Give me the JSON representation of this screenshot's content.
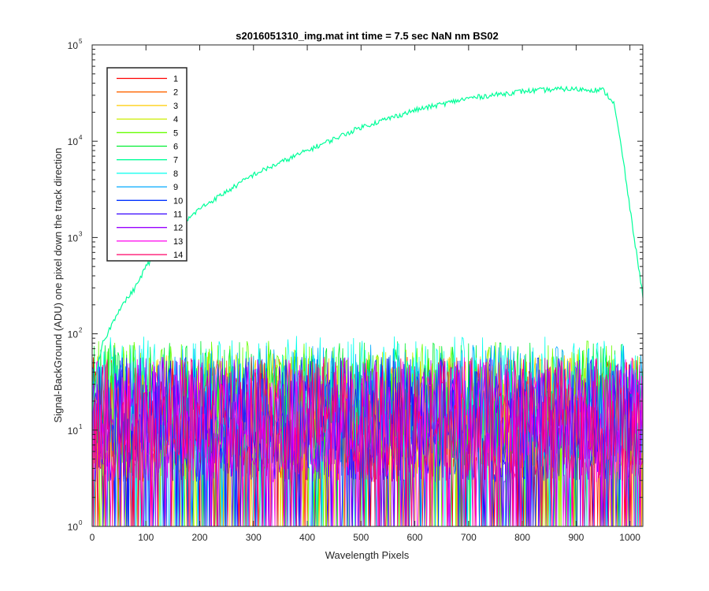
{
  "chart_data": {
    "type": "line",
    "title": "s2016051310_img.mat int time = 7.5 sec  NaN nm BS02",
    "xlabel": "Wavelength Pixels",
    "ylabel": "Signal-BackGround (ADU) one pixel down the track direction",
    "xlim": [
      0,
      1024
    ],
    "ylim": [
      1,
      100000
    ],
    "yscale": "log",
    "grid": false,
    "legend_position": "top-left",
    "x_ticks": [
      "0",
      "100",
      "200",
      "300",
      "400",
      "500",
      "600",
      "700",
      "800",
      "900",
      "1000"
    ],
    "y_ticks": [
      {
        "base": "10",
        "exp": "0"
      },
      {
        "base": "10",
        "exp": "1"
      },
      {
        "base": "10",
        "exp": "2"
      },
      {
        "base": "10",
        "exp": "3"
      },
      {
        "base": "10",
        "exp": "4"
      },
      {
        "base": "10",
        "exp": "5"
      }
    ],
    "series": [
      {
        "name": "1",
        "color": "#ff0000",
        "profile": "noise",
        "level": 15
      },
      {
        "name": "2",
        "color": "#ff6600",
        "profile": "noise",
        "level": 15
      },
      {
        "name": "3",
        "color": "#ffcc00",
        "profile": "noise",
        "level": 16
      },
      {
        "name": "4",
        "color": "#ccee00",
        "profile": "noise",
        "level": 18
      },
      {
        "name": "5",
        "color": "#66ff00",
        "profile": "noise",
        "level": 22
      },
      {
        "name": "6",
        "color": "#00ee33",
        "profile": "noise",
        "level": 22
      },
      {
        "name": "7",
        "color": "#00ff99",
        "profile": "spectrum",
        "points": [
          [
            0,
            15
          ],
          [
            10,
            45
          ],
          [
            20,
            80
          ],
          [
            50,
            180
          ],
          [
            80,
            300
          ],
          [
            100,
            500
          ],
          [
            150,
            1100
          ],
          [
            200,
            2000
          ],
          [
            250,
            3000
          ],
          [
            300,
            4500
          ],
          [
            400,
            8000
          ],
          [
            500,
            14000
          ],
          [
            600,
            21000
          ],
          [
            700,
            28000
          ],
          [
            800,
            33000
          ],
          [
            880,
            35000
          ],
          [
            950,
            34000
          ],
          [
            970,
            25000
          ],
          [
            985,
            8000
          ],
          [
            1000,
            2000
          ],
          [
            1024,
            250
          ]
        ]
      },
      {
        "name": "8",
        "color": "#00ffee",
        "profile": "noise",
        "level": 25
      },
      {
        "name": "9",
        "color": "#00aaff",
        "profile": "noise",
        "level": 20
      },
      {
        "name": "10",
        "color": "#0033ff",
        "profile": "noise",
        "level": 15
      },
      {
        "name": "11",
        "color": "#3300ff",
        "profile": "noise",
        "level": 15
      },
      {
        "name": "12",
        "color": "#9900ff",
        "profile": "noise",
        "level": 15
      },
      {
        "name": "13",
        "color": "#ff00ee",
        "profile": "noise",
        "level": 15
      },
      {
        "name": "14",
        "color": "#ff0066",
        "profile": "noise",
        "level": 15
      }
    ]
  }
}
